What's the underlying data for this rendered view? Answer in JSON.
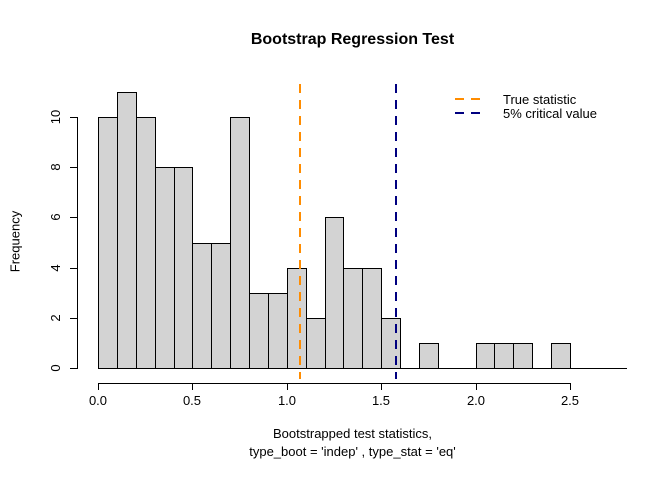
{
  "title": "Bootstrap Regression Test",
  "chart_data": {
    "type": "bar",
    "subtype": "histogram",
    "title": "Bootstrap Regression Test",
    "ylabel": "Frequency",
    "xlabel_line1": "Bootstrapped test statistics,",
    "xlabel_line2": "type_boot = 'indep' , type_stat = 'eq'",
    "bin_start": 0.0,
    "bin_width": 0.1,
    "counts": [
      10,
      11,
      10,
      8,
      8,
      5,
      5,
      10,
      3,
      3,
      4,
      2,
      6,
      4,
      4,
      2,
      0,
      1,
      0,
      0,
      1,
      1,
      1,
      0,
      1
    ],
    "x_ticks": [
      0.0,
      0.5,
      1.0,
      1.5,
      2.0,
      2.5
    ],
    "x_tick_labels": [
      "0.0",
      "0.5",
      "1.0",
      "1.5",
      "2.0",
      "2.5"
    ],
    "y_ticks": [
      0,
      2,
      4,
      6,
      8,
      10
    ],
    "y_tick_labels": [
      "0",
      "2",
      "4",
      "6",
      "8",
      "10"
    ],
    "xlim": [
      0,
      2.5
    ],
    "ylim": [
      0,
      11
    ],
    "grid": false,
    "legend_position": "top-right",
    "bar_fill": "#d3d3d3",
    "bar_border": "#000000",
    "vlines": [
      {
        "value": 1.07,
        "label": "True statistic",
        "color": "#ff8c00",
        "style": "dashed"
      },
      {
        "value": 1.576,
        "label": "5% critical value",
        "color": "#000080",
        "style": "dashed"
      }
    ]
  }
}
